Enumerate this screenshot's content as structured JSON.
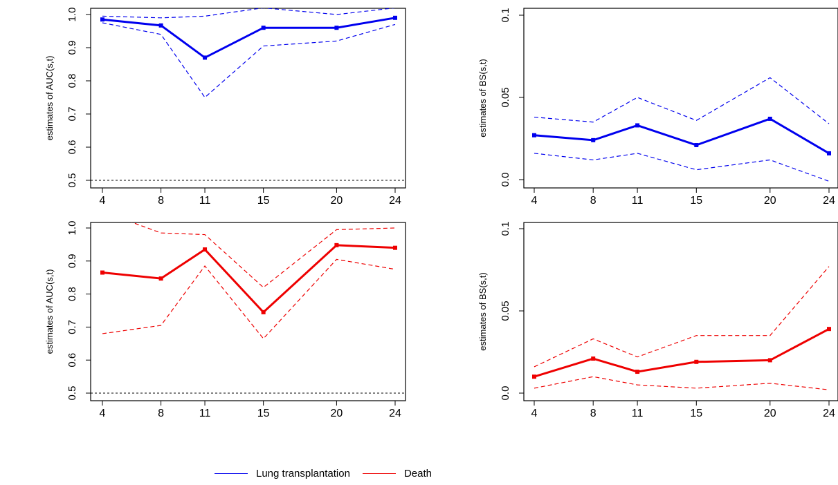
{
  "chart_data": [
    {
      "type": "line",
      "panel": "top-left",
      "ylabel": "estimates of AUC(s,t)",
      "x": [
        4,
        8,
        11,
        15,
        20,
        24
      ],
      "xticks": [
        "4",
        "8",
        "11",
        "15",
        "20",
        "24"
      ],
      "ylim": [
        0.5,
        1.0
      ],
      "yticks": [
        "0.5",
        "0.6",
        "0.7",
        "0.8",
        "0.9",
        "1.0"
      ],
      "reference_line": 0.5,
      "color": "#0000ee",
      "series": [
        {
          "role": "estimate",
          "values": [
            0.985,
            0.967,
            0.87,
            0.96,
            0.96,
            0.99
          ]
        },
        {
          "role": "upper",
          "values": [
            0.995,
            0.99,
            0.995,
            1.02,
            1.0,
            1.02
          ]
        },
        {
          "role": "lower",
          "values": [
            0.975,
            0.94,
            0.75,
            0.905,
            0.92,
            0.97
          ]
        }
      ]
    },
    {
      "type": "line",
      "panel": "top-right",
      "ylabel": "estimates of BS(s,t)",
      "x": [
        4,
        8,
        11,
        15,
        20,
        24
      ],
      "xticks": [
        "4",
        "8",
        "11",
        "15",
        "20",
        "24"
      ],
      "ylim": [
        0.0,
        0.1
      ],
      "yticks": [
        "0.0",
        "0.05",
        "0.1"
      ],
      "color": "#0000ee",
      "series": [
        {
          "role": "estimate",
          "values": [
            0.027,
            0.024,
            0.033,
            0.021,
            0.037,
            0.016
          ]
        },
        {
          "role": "upper",
          "values": [
            0.038,
            0.035,
            0.05,
            0.036,
            0.062,
            0.034
          ]
        },
        {
          "role": "lower",
          "values": [
            0.016,
            0.012,
            0.016,
            0.006,
            0.012,
            -0.001
          ]
        }
      ]
    },
    {
      "type": "line",
      "panel": "bottom-left",
      "ylabel": "estimates of AUC(s,t)",
      "x": [
        4,
        8,
        11,
        15,
        20,
        24
      ],
      "xticks": [
        "4",
        "8",
        "11",
        "15",
        "20",
        "24"
      ],
      "ylim": [
        0.5,
        1.0
      ],
      "yticks": [
        "0.5",
        "0.6",
        "0.7",
        "0.8",
        "0.9",
        "1.0"
      ],
      "reference_line": 0.5,
      "color": "#ee0000",
      "series": [
        {
          "role": "estimate",
          "values": [
            0.865,
            0.847,
            0.935,
            0.745,
            0.948,
            0.94
          ]
        },
        {
          "role": "upper",
          "values": [
            1.05,
            0.985,
            0.98,
            0.82,
            0.995,
            1.0
          ]
        },
        {
          "role": "lower",
          "values": [
            0.68,
            0.705,
            0.885,
            0.665,
            0.905,
            0.875
          ]
        }
      ]
    },
    {
      "type": "line",
      "panel": "bottom-right",
      "ylabel": "estimates of BS(s,t)",
      "x": [
        4,
        8,
        11,
        15,
        20,
        24
      ],
      "xticks": [
        "4",
        "8",
        "11",
        "15",
        "20",
        "24"
      ],
      "ylim": [
        0.0,
        0.1
      ],
      "yticks": [
        "0.0",
        "0.05",
        "0.1"
      ],
      "color": "#ee0000",
      "series": [
        {
          "role": "estimate",
          "values": [
            0.01,
            0.021,
            0.013,
            0.019,
            0.02,
            0.039
          ]
        },
        {
          "role": "upper",
          "values": [
            0.016,
            0.033,
            0.022,
            0.035,
            0.035,
            0.077
          ]
        },
        {
          "role": "lower",
          "values": [
            0.003,
            0.01,
            0.005,
            0.003,
            0.006,
            0.002
          ]
        }
      ]
    }
  ],
  "legend": {
    "placement": "bottom",
    "items": [
      {
        "label": "Lung transplantation",
        "color": "#0000ee"
      },
      {
        "label": "Death",
        "color": "#ee0000"
      }
    ]
  }
}
